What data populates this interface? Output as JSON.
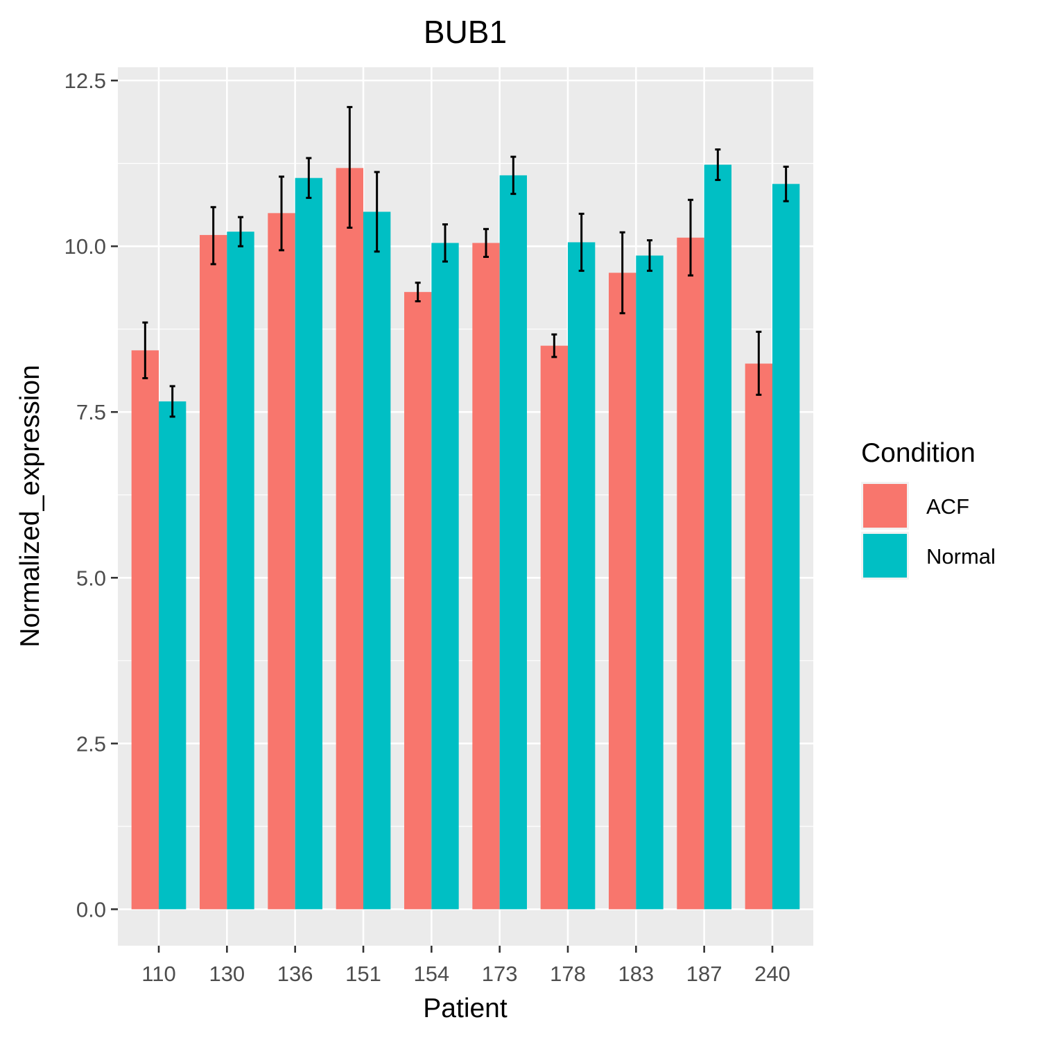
{
  "chart_data": {
    "type": "bar",
    "title": "BUB1",
    "xlabel": "Patient",
    "ylabel": "Normalized_expression",
    "categories": [
      "110",
      "130",
      "136",
      "151",
      "154",
      "173",
      "178",
      "183",
      "187",
      "240"
    ],
    "series": [
      {
        "name": "ACF",
        "color": "#F8766D",
        "values": [
          8.43,
          10.17,
          10.5,
          11.18,
          9.31,
          10.05,
          8.5,
          9.6,
          10.13,
          8.23
        ],
        "error_low": [
          8.01,
          9.73,
          9.94,
          10.28,
          9.17,
          9.84,
          8.33,
          8.99,
          9.56,
          7.76
        ],
        "error_high": [
          8.85,
          10.59,
          11.05,
          12.1,
          9.45,
          10.26,
          8.67,
          10.21,
          10.7,
          8.71
        ]
      },
      {
        "name": "Normal",
        "color": "#00BFC4",
        "values": [
          7.66,
          10.22,
          11.03,
          10.52,
          10.05,
          11.07,
          10.06,
          9.86,
          11.23,
          10.94
        ],
        "error_low": [
          7.43,
          10.0,
          10.73,
          9.92,
          9.77,
          10.79,
          9.63,
          9.63,
          11.0,
          10.68
        ],
        "error_high": [
          7.89,
          10.44,
          11.33,
          11.12,
          10.33,
          11.35,
          10.49,
          10.09,
          11.46,
          11.2
        ]
      }
    ],
    "ylim": [
      -0.55,
      12.7
    ],
    "yticks": [
      0.0,
      2.5,
      5.0,
      7.5,
      10.0,
      12.5
    ],
    "ytick_labels": [
      "0.0",
      "2.5",
      "5.0",
      "7.5",
      "10.0",
      "12.5"
    ],
    "grid": true,
    "legend": {
      "title": "Condition",
      "position": "right"
    }
  }
}
